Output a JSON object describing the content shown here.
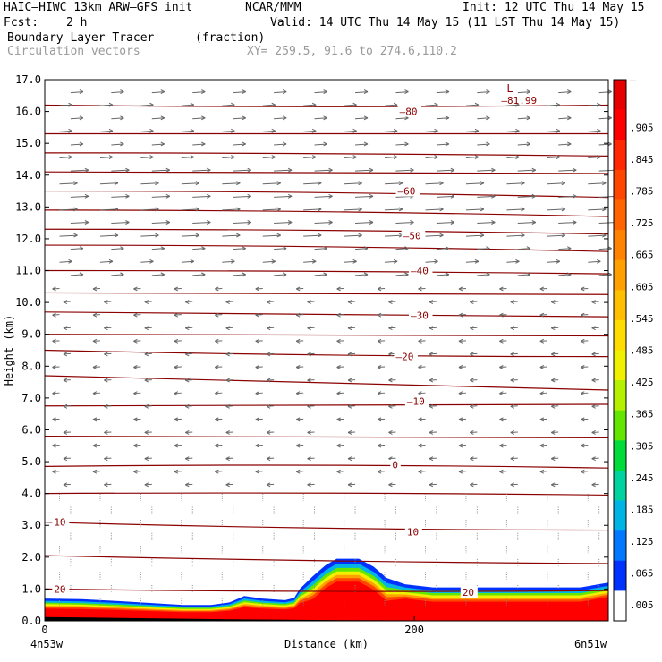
{
  "header": {
    "model": "HAIC–HIWC 13km ARW–GFS init",
    "center": "NCAR/MMM",
    "init": "Init: 12 UTC Thu 14 May 15",
    "fcst_label": "Fcst:",
    "fcst_value": "2 h",
    "valid": "Valid: 14 UTC Thu 14 May 15 (11 LST Thu 14 May 15)",
    "field1": "Boundary Layer Tracer",
    "field1_units": "(fraction)",
    "field2": "Circulation vectors",
    "xy": "XY= 259.5, 91.6 to 274.6,110.2"
  },
  "chart_data": {
    "type": "heatmap",
    "title": "Boundary Layer Tracer",
    "ylabel": "Height (km)",
    "xlabel": "Distance (km)",
    "ylim": [
      0,
      17
    ],
    "xlim": [
      0,
      305
    ],
    "y_ticks": [
      "0.0",
      "1.0",
      "2.0",
      "3.0",
      "4.0",
      "5.0",
      "6.0",
      "7.0",
      "8.0",
      "9.0",
      "10.0",
      "11.0",
      "12.0",
      "13.0",
      "14.0",
      "15.0",
      "16.0",
      "17.0"
    ],
    "x_ticks": [
      {
        "value": 0,
        "label": "0"
      },
      {
        "value": 200,
        "label": "200"
      }
    ],
    "x_end_labels": {
      "left": "4n53w",
      "right": "6n51w"
    },
    "colorbar": {
      "labels": [
        "–",
        ".905",
        ".845",
        ".785",
        ".725",
        ".665",
        ".605",
        ".545",
        ".485",
        ".425",
        ".365",
        ".305",
        ".245",
        ".185",
        ".125",
        ".065",
        ".005"
      ],
      "colors": [
        "#e60000",
        "#ff0000",
        "#ff2800",
        "#ff4600",
        "#ff6400",
        "#ff8200",
        "#ffa000",
        "#ffbe00",
        "#ffdc00",
        "#f0f000",
        "#b4f000",
        "#64e600",
        "#00dc3c",
        "#00d2a0",
        "#00b4e6",
        "#0078ff",
        "#0032ff",
        "#ffffff"
      ]
    },
    "isotherm_labels": [
      {
        "text": "–80",
        "x": 192,
        "y": 16.0
      },
      {
        "text": "–60",
        "x": 191,
        "y": 13.5
      },
      {
        "text": "–50",
        "x": 194,
        "y": 12.1
      },
      {
        "text": "–40",
        "x": 198,
        "y": 11.0
      },
      {
        "text": "–30",
        "x": 198,
        "y": 9.6
      },
      {
        "text": "–20",
        "x": 190,
        "y": 8.3
      },
      {
        "text": "–10",
        "x": 196,
        "y": 6.9
      },
      {
        "text": "0",
        "x": 188,
        "y": 4.9
      },
      {
        "text": "10",
        "x": 5,
        "y": 3.1
      },
      {
        "text": "10",
        "x": 196,
        "y": 2.8
      },
      {
        "text": "20",
        "x": 5,
        "y": 1.0
      },
      {
        "text": "20",
        "x": 226,
        "y": 0.9
      }
    ],
    "low_marker": {
      "letter": "L",
      "value": "–81.99",
      "x": 250,
      "y": 16.6
    }
  }
}
